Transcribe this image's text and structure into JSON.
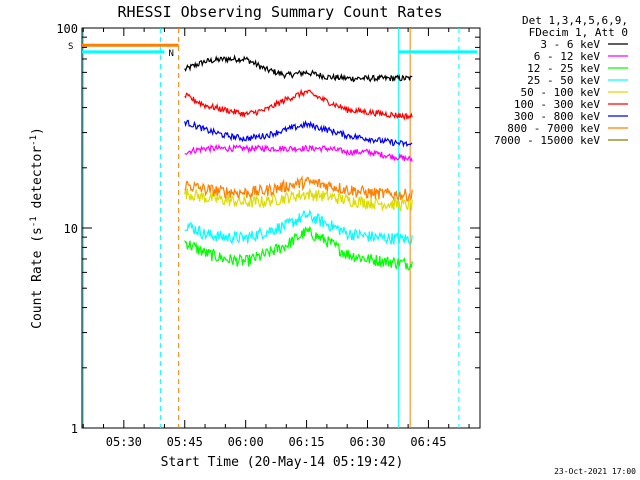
{
  "chart_data": {
    "type": "line",
    "title": "RHESSI Observing Summary Count Rates",
    "xlabel": "Start Time (20-May-14 05:19:42)",
    "ylabel_main": "Count Rate (s",
    "ylabel_sup1": "-1",
    "ylabel_mid": " detector",
    "ylabel_sup2": "-1",
    "ylabel_end": ")",
    "y_scale": "log",
    "ylim": [
      1,
      100
    ],
    "xlim": [
      "05:19:42",
      "06:57:42"
    ],
    "x_ticks": [
      {
        "label": "05:30",
        "t": "05:30"
      },
      {
        "label": "05:45",
        "t": "05:45"
      },
      {
        "label": "06:00",
        "t": "06:00"
      },
      {
        "label": "06:15",
        "t": "06:15"
      },
      {
        "label": "06:30",
        "t": "06:30"
      },
      {
        "label": "06:45",
        "t": "06:45"
      }
    ],
    "y_ticks": [
      {
        "label": "1",
        "value": 1
      },
      {
        "label": "10",
        "value": 10
      },
      {
        "label": "100",
        "value": 100
      }
    ],
    "legend_placement": "right",
    "legend_header": [
      "Det 1,3,4,5,6,9,",
      "FDecim 1, Att 0"
    ],
    "series": [
      {
        "name": "3 - 6 keV",
        "color": "#000000",
        "t": [
          "05:45",
          "05:50",
          "05:55",
          "06:00",
          "06:05",
          "06:10",
          "06:15",
          "06:20",
          "06:25",
          "06:30",
          "06:35",
          "06:41"
        ],
        "values": [
          62,
          68,
          70,
          70,
          62,
          58,
          60,
          57,
          56,
          56,
          56,
          56
        ]
      },
      {
        "name": "6 - 12 keV",
        "color": "#ff00ff",
        "t": [
          "05:45",
          "05:50",
          "05:55",
          "06:00",
          "06:05",
          "06:10",
          "06:15",
          "06:20",
          "06:25",
          "06:30",
          "06:35",
          "06:41"
        ],
        "values": [
          24,
          25,
          25,
          25,
          25,
          25,
          25,
          25,
          24,
          24,
          23,
          22
        ]
      },
      {
        "name": "12 - 25 keV",
        "color": "#00ff00",
        "t": [
          "05:45",
          "05:50",
          "05:55",
          "06:00",
          "06:05",
          "06:10",
          "06:15",
          "06:20",
          "06:25",
          "06:30",
          "06:35",
          "06:41"
        ],
        "values": [
          8.5,
          7.5,
          7.0,
          6.8,
          7.4,
          8.2,
          9.6,
          8.6,
          7.4,
          7.0,
          6.8,
          6.6
        ]
      },
      {
        "name": "25 - 50 keV",
        "color": "#00ffff",
        "t": [
          "05:45",
          "05:50",
          "05:55",
          "06:00",
          "06:05",
          "06:10",
          "06:15",
          "06:20",
          "06:25",
          "06:30",
          "06:35",
          "06:41"
        ],
        "values": [
          10.5,
          9.3,
          9.0,
          8.9,
          9.6,
          10.3,
          11.6,
          10.5,
          9.4,
          9.1,
          8.9,
          8.8
        ]
      },
      {
        "name": "50 - 100 keV",
        "color": "#dddd00",
        "t": [
          "05:45",
          "05:50",
          "05:55",
          "06:00",
          "06:05",
          "06:10",
          "06:15",
          "06:20",
          "06:25",
          "06:30",
          "06:35",
          "06:41"
        ],
        "values": [
          15,
          14.2,
          13.8,
          13.4,
          13.6,
          14.2,
          14.8,
          14.4,
          13.8,
          13.4,
          13.2,
          13.0
        ]
      },
      {
        "name": "100 - 300 keV",
        "color": "#ff0000",
        "t": [
          "05:45",
          "05:50",
          "05:55",
          "06:00",
          "06:05",
          "06:10",
          "06:15",
          "06:20",
          "06:25",
          "06:30",
          "06:35",
          "06:41"
        ],
        "values": [
          46,
          41,
          39,
          37,
          39,
          44,
          48,
          43,
          39,
          38,
          37,
          36
        ]
      },
      {
        "name": "300 - 800 keV",
        "color": "#0000ff",
        "t": [
          "05:45",
          "05:50",
          "05:55",
          "06:00",
          "06:05",
          "06:10",
          "06:15",
          "06:20",
          "06:25",
          "06:30",
          "06:35",
          "06:41"
        ],
        "values": [
          34,
          31,
          29,
          28,
          29,
          31,
          33,
          31,
          29,
          28,
          27,
          26
        ]
      },
      {
        "name": "800 - 7000 keV",
        "color": "#ff8000",
        "t": [
          "05:45",
          "05:50",
          "05:55",
          "06:00",
          "06:05",
          "06:10",
          "06:15",
          "06:20",
          "06:25",
          "06:30",
          "06:35",
          "06:41"
        ],
        "values": [
          16.5,
          15.6,
          15.2,
          15.0,
          15.4,
          16.2,
          17.0,
          16.4,
          15.6,
          15.0,
          14.8,
          14.6
        ]
      },
      {
        "name": "7000 - 15000 keV",
        "color": "#808000",
        "t": [],
        "values": []
      }
    ],
    "saa_flag": {
      "label": "S",
      "color": "#ff8000",
      "t_start": "05:19:42",
      "t_end": "05:43:30",
      "level": 82
    },
    "night_flag": {
      "label": "N",
      "color": "#00ffff",
      "t_start": "05:19:42",
      "t_end": "05:40:00",
      "level": 76,
      "t2_start": "06:37:40",
      "t2_end": "06:57:00"
    },
    "vertical_markers": [
      {
        "t": "05:20:00",
        "color": "#00ffff",
        "style": "solid"
      },
      {
        "t": "05:39:00",
        "color": "#00ffff",
        "style": "dashed"
      },
      {
        "t": "05:43:30",
        "color": "#ff8000",
        "style": "dashed"
      },
      {
        "t": "06:37:40",
        "color": "#00ffff",
        "style": "solid"
      },
      {
        "t": "06:40:30",
        "color": "#ff8000",
        "style": "solid"
      },
      {
        "t": "06:52:30",
        "color": "#00ffff",
        "style": "dashed"
      }
    ]
  },
  "footer_date": "23-Oct-2021 17:00"
}
